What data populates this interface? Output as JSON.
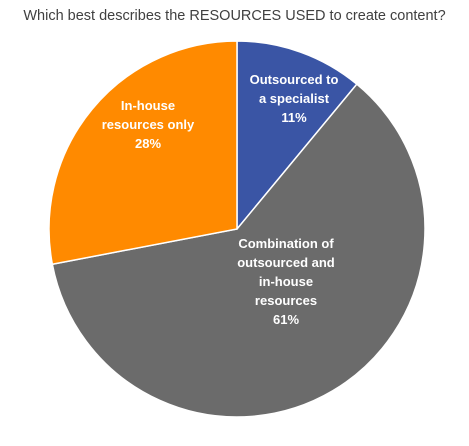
{
  "chart_data": {
    "type": "pie",
    "title": "Which best describes the RESOURCES USED to create content?",
    "slices": [
      {
        "name": "Outsourced to a specialist",
        "label_lines": [
          "Outsourced to",
          "a specialist",
          "11%"
        ],
        "value": 11,
        "color": "#3a55a5"
      },
      {
        "name": "Combination of outsourced and in-house resources",
        "label_lines": [
          "Combination of",
          "outsourced and",
          "in-house",
          "resources",
          "61%"
        ],
        "value": 61,
        "color": "#6b6b6b"
      },
      {
        "name": "In-house resources only",
        "label_lines": [
          "In-house",
          "resources only",
          "28%"
        ],
        "value": 28,
        "color": "#ff8a00"
      }
    ],
    "legend": "none",
    "start_angle": "12 o'clock, clockwise"
  }
}
